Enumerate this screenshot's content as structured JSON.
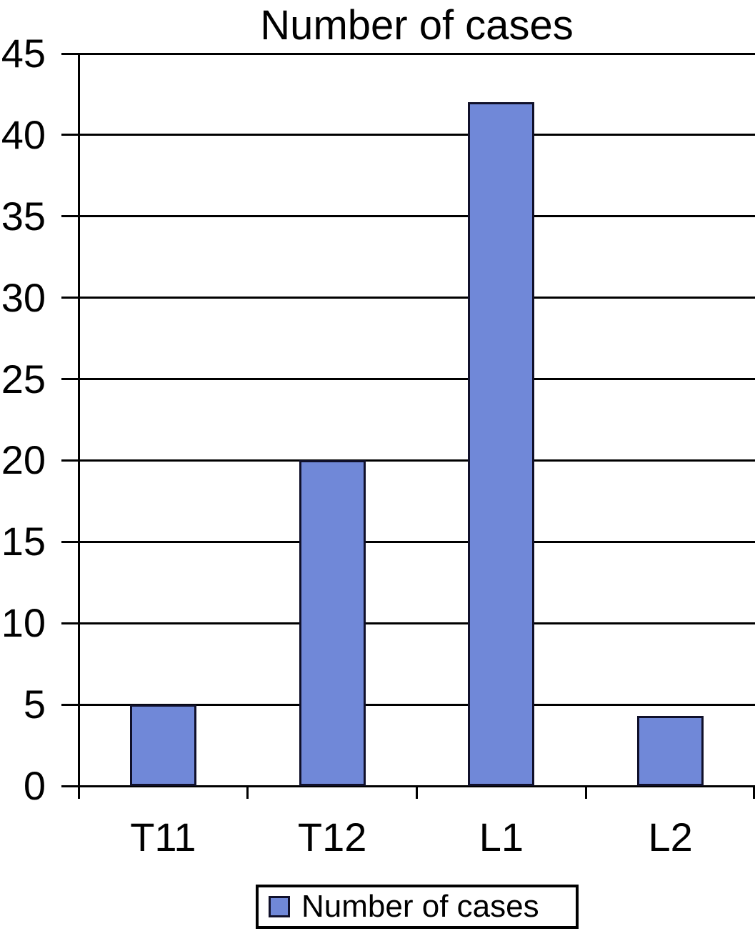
{
  "chart_data": {
    "type": "bar",
    "title": "Number of cases",
    "categories": [
      "T11",
      "T12",
      "L1",
      "L2"
    ],
    "series": [
      {
        "name": "Number of cases",
        "values": [
          5,
          20,
          42,
          4.3
        ]
      }
    ],
    "xlabel": "",
    "ylabel": "",
    "ylim": [
      0,
      45
    ],
    "ytick_step": 5,
    "grid": true,
    "legend_position": "bottom",
    "colors": {
      "bar_fill": "#7088d8",
      "bar_border": "#10102a",
      "axis_line": "#000000",
      "text": "#000000"
    }
  },
  "legend": {
    "items": [
      {
        "label": "Number of cases",
        "swatch_color": "#7088d8"
      }
    ]
  }
}
